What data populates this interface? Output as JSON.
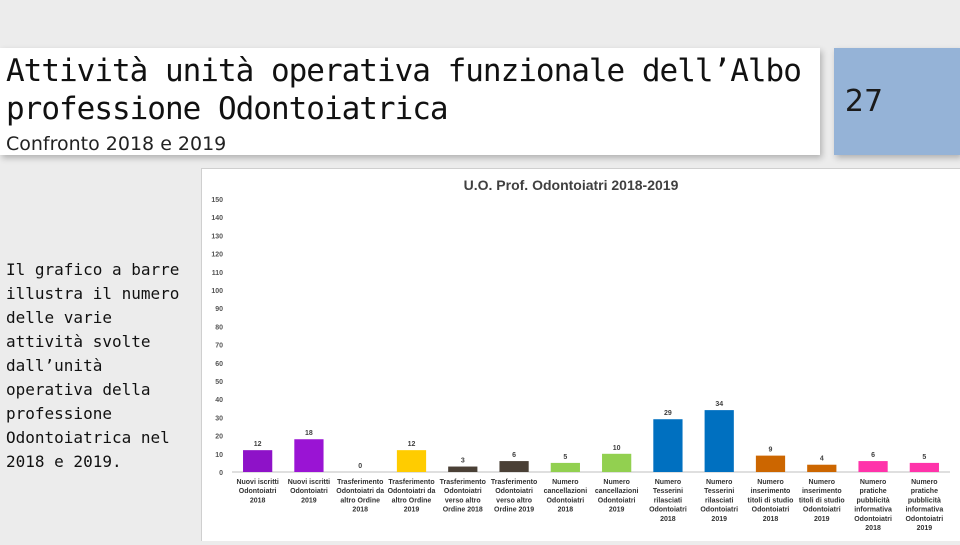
{
  "slide": {
    "title_line1": "Attività unità operativa funzionale dell’Albo",
    "title_line2": "professione Odontoiatrica",
    "subtitle": "Confronto 2018 e 2019",
    "page_number": "27",
    "description": "Il grafico a barre illustra il numero delle varie attività svolte dall’unità operativa della professione Odontoiatrica nel 2018 e 2019."
  },
  "chart_data": {
    "type": "bar",
    "title": "U.O. Prof. Odontoiatri 2018-2019",
    "xlabel": "",
    "ylabel": "",
    "ylim": [
      0,
      150
    ],
    "yticks": [
      0,
      10,
      20,
      30,
      40,
      50,
      60,
      70,
      80,
      90,
      100,
      110,
      120,
      130,
      140,
      150
    ],
    "grid": false,
    "categories": [
      [
        "Nuovi iscritti",
        "Odontoiatri",
        "2018"
      ],
      [
        "Nuovi iscritti",
        "Odontoiatri",
        "2019"
      ],
      [
        "Trasferimento",
        "Odontoiatri da",
        "altro Ordine",
        "2018"
      ],
      [
        "Trasferimento",
        "Odontoiatri da",
        "altro Ordine",
        "2019"
      ],
      [
        "Trasferimento",
        "Odontoiatri",
        "verso altro",
        "Ordine 2018"
      ],
      [
        "Trasferimento",
        "Odontoiatri",
        "verso altro",
        "Ordine 2019"
      ],
      [
        "Numero",
        "cancellazioni",
        "Odontoiatri",
        "2018"
      ],
      [
        "Numero",
        "cancellazioni",
        "Odontoiatri",
        "2019"
      ],
      [
        "Numero",
        "Tesserini",
        "rilasciati",
        "Odontoiatri",
        "2018"
      ],
      [
        "Numero",
        "Tesserini",
        "rilasciati",
        "Odontoiatri",
        "2019"
      ],
      [
        "Numero",
        "inserimento",
        "titoli di studio",
        "Odontoiatri",
        "2018"
      ],
      [
        "Numero",
        "inserimento",
        "titoli di studio",
        "Odontoiatri",
        "2019"
      ],
      [
        "Numero",
        "pratiche",
        "pubblicità",
        "informativa",
        "Odontoiatri",
        "2018"
      ],
      [
        "Numero",
        "pratiche",
        "pubblicità",
        "informativa",
        "Odontoiatri",
        "2019"
      ]
    ],
    "values": [
      12,
      18,
      0,
      12,
      3,
      6,
      5,
      10,
      29,
      34,
      9,
      4,
      6,
      5
    ],
    "colors": [
      "#8e12c8",
      "#9a14d4",
      "#8e12c8",
      "#ffcc00",
      "#4a4036",
      "#4a4036",
      "#92d050",
      "#92d050",
      "#0070c0",
      "#0070c0",
      "#cc6600",
      "#cc6600",
      "#ff33aa",
      "#ff33aa"
    ]
  }
}
